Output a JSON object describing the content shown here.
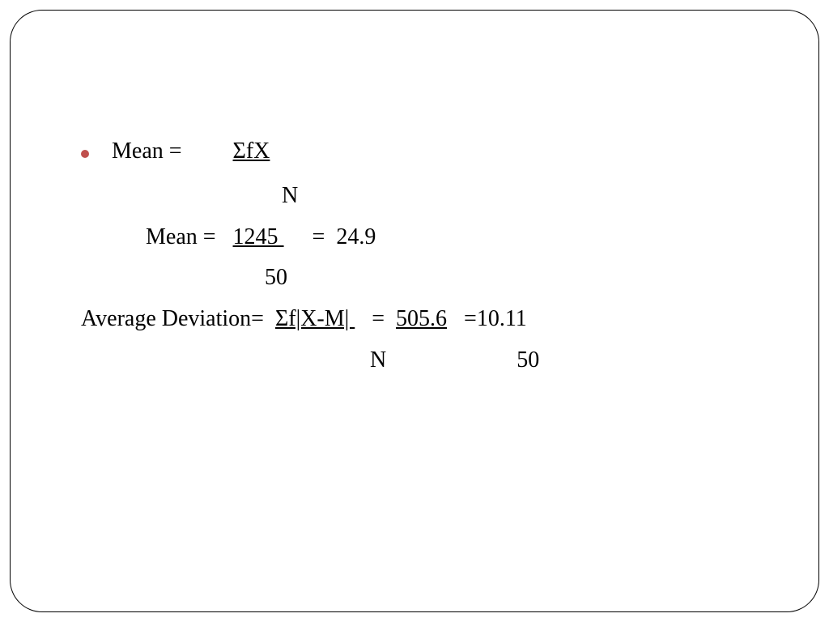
{
  "slide": {
    "background_color": "#ffffff",
    "border_color": "#000000",
    "border_radius": 40,
    "font_family": "Garamond, Times New Roman, serif",
    "font_size": 28,
    "text_color": "#000000",
    "bullet_color": "#c0504d",
    "lines": {
      "l1_prefix": "Mean =         ",
      "l1_under": "ΣfX",
      "l2": "                              N",
      "l3_prefix": "      Mean =   ",
      "l3_under": "1245 ",
      "l3_suffix": "     =  24.9",
      "l4": "                           50",
      "l5_prefix": "Average Deviation=  ",
      "l5_under1": "Σf|X-M| ",
      "l5_mid": "   =  ",
      "l5_under2": "505.6",
      "l5_suffix": "   =10.11",
      "l6": "                                                   N                       50"
    }
  }
}
